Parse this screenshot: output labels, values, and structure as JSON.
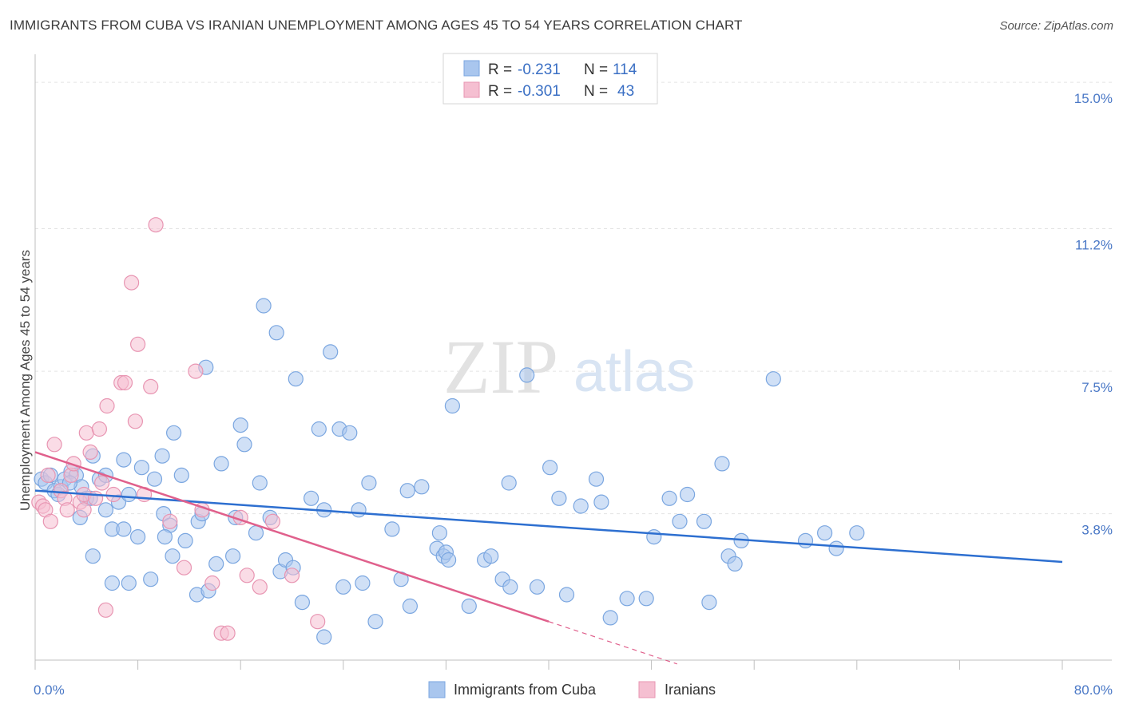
{
  "title": "IMMIGRANTS FROM CUBA VS IRANIAN UNEMPLOYMENT AMONG AGES 45 TO 54 YEARS CORRELATION CHART",
  "source": "Source: ZipAtlas.com",
  "watermark": {
    "zip": "ZIP",
    "atlas": "atlas"
  },
  "chart_data": {
    "type": "scatter",
    "xlim": [
      0,
      80
    ],
    "ylim": [
      0,
      15.5
    ],
    "xlabel": "",
    "ylabel": "Unemployment Among Ages 45 to 54 years",
    "x_tick_labels": {
      "left": "0.0%",
      "right": "80.0%"
    },
    "y_ticks": [
      {
        "value": 3.8,
        "label": "3.8%"
      },
      {
        "value": 7.5,
        "label": "7.5%"
      },
      {
        "value": 11.2,
        "label": "11.2%"
      },
      {
        "value": 15.0,
        "label": "15.0%"
      }
    ],
    "grid": true,
    "legend_position": "top-center",
    "legend": [
      {
        "r_label": "R =",
        "r_value": "-0.231",
        "n_label": "N =",
        "n_value": "114"
      },
      {
        "r_label": "R =",
        "r_value": "-0.301",
        "n_label": "N =",
        "n_value": "43"
      }
    ],
    "series": [
      {
        "name": "Immigrants from Cuba",
        "color": "#7aa6e0",
        "fill": "#a9c6ee",
        "trend": {
          "x": [
            0,
            80
          ],
          "y": [
            4.4,
            2.55
          ],
          "color": "#2d6fd0"
        },
        "points": [
          [
            0.5,
            4.7
          ],
          [
            0.8,
            4.6
          ],
          [
            1.2,
            4.8
          ],
          [
            1.5,
            4.4
          ],
          [
            1.8,
            4.3
          ],
          [
            2.0,
            4.5
          ],
          [
            2.3,
            4.7
          ],
          [
            2.8,
            4.9
          ],
          [
            3.2,
            4.8
          ],
          [
            3.6,
            4.5
          ],
          [
            2.7,
            4.6
          ],
          [
            4.0,
            4.2
          ],
          [
            4.5,
            5.3
          ],
          [
            5.0,
            4.7
          ],
          [
            5.5,
            4.8
          ],
          [
            3.5,
            3.7
          ],
          [
            4.3,
            4.2
          ],
          [
            6.5,
            4.1
          ],
          [
            6.9,
            5.2
          ],
          [
            7.3,
            4.3
          ],
          [
            5.5,
            3.9
          ],
          [
            6.0,
            3.4
          ],
          [
            6.9,
            3.4
          ],
          [
            8.0,
            3.2
          ],
          [
            8.3,
            5.0
          ],
          [
            9.3,
            4.7
          ],
          [
            10.0,
            3.8
          ],
          [
            10.5,
            3.5
          ],
          [
            10.1,
            3.2
          ],
          [
            9.9,
            5.3
          ],
          [
            10.8,
            5.9
          ],
          [
            11.4,
            4.8
          ],
          [
            11.7,
            3.1
          ],
          [
            12.7,
            3.6
          ],
          [
            13.0,
            3.8
          ],
          [
            13.3,
            7.6
          ],
          [
            14.1,
            2.5
          ],
          [
            14.5,
            5.1
          ],
          [
            15.6,
            3.7
          ],
          [
            15.4,
            2.7
          ],
          [
            16.0,
            6.1
          ],
          [
            16.3,
            5.6
          ],
          [
            17.2,
            3.3
          ],
          [
            17.5,
            4.6
          ],
          [
            17.8,
            9.2
          ],
          [
            18.8,
            8.5
          ],
          [
            18.3,
            3.7
          ],
          [
            19.1,
            2.3
          ],
          [
            19.5,
            2.6
          ],
          [
            20.1,
            2.4
          ],
          [
            20.3,
            7.3
          ],
          [
            20.8,
            1.5
          ],
          [
            21.5,
            4.2
          ],
          [
            22.1,
            6.0
          ],
          [
            22.5,
            3.9
          ],
          [
            23.0,
            8.0
          ],
          [
            23.7,
            6.0
          ],
          [
            24.5,
            5.9
          ],
          [
            25.2,
            3.9
          ],
          [
            26.0,
            4.6
          ],
          [
            25.5,
            2.0
          ],
          [
            24.0,
            1.9
          ],
          [
            26.5,
            1.0
          ],
          [
            27.8,
            3.4
          ],
          [
            28.5,
            2.1
          ],
          [
            29.2,
            1.4
          ],
          [
            29.0,
            4.4
          ],
          [
            30.1,
            4.5
          ],
          [
            31.3,
            2.9
          ],
          [
            31.8,
            2.7
          ],
          [
            32.0,
            2.8
          ],
          [
            32.2,
            2.6
          ],
          [
            31.5,
            3.3
          ],
          [
            32.5,
            6.6
          ],
          [
            33.8,
            1.4
          ],
          [
            35.0,
            2.6
          ],
          [
            35.5,
            2.7
          ],
          [
            36.4,
            2.1
          ],
          [
            37.0,
            1.9
          ],
          [
            36.9,
            4.6
          ],
          [
            38.3,
            7.4
          ],
          [
            39.1,
            1.9
          ],
          [
            40.1,
            5.0
          ],
          [
            40.8,
            4.2
          ],
          [
            41.4,
            1.7
          ],
          [
            42.5,
            4.0
          ],
          [
            43.7,
            4.7
          ],
          [
            44.1,
            4.1
          ],
          [
            44.8,
            1.1
          ],
          [
            46.1,
            1.6
          ],
          [
            47.6,
            1.6
          ],
          [
            48.2,
            3.2
          ],
          [
            49.4,
            4.2
          ],
          [
            50.2,
            3.6
          ],
          [
            50.8,
            4.3
          ],
          [
            52.1,
            3.6
          ],
          [
            52.5,
            1.5
          ],
          [
            53.5,
            5.1
          ],
          [
            54.0,
            2.7
          ],
          [
            54.5,
            2.5
          ],
          [
            55.0,
            3.1
          ],
          [
            57.5,
            7.3
          ],
          [
            60.0,
            3.1
          ],
          [
            61.5,
            3.3
          ],
          [
            62.4,
            2.9
          ],
          [
            64.0,
            3.3
          ],
          [
            12.6,
            1.7
          ],
          [
            13.5,
            1.8
          ],
          [
            10.7,
            2.7
          ],
          [
            6.0,
            2.0
          ],
          [
            7.3,
            2.0
          ],
          [
            9.0,
            2.1
          ],
          [
            4.5,
            2.7
          ],
          [
            22.5,
            0.6
          ]
        ]
      },
      {
        "name": "Iranians",
        "color": "#e895b2",
        "fill": "#f5bfd1",
        "trend": {
          "x": [
            0,
            40
          ],
          "y": [
            5.4,
            1.0
          ],
          "color": "#e0608c",
          "dash_to": [
            50,
            -0.1
          ]
        },
        "points": [
          [
            0.3,
            4.1
          ],
          [
            0.6,
            4.0
          ],
          [
            0.8,
            3.9
          ],
          [
            1.0,
            4.8
          ],
          [
            1.2,
            3.6
          ],
          [
            1.5,
            5.6
          ],
          [
            2.0,
            4.4
          ],
          [
            2.3,
            4.2
          ],
          [
            2.8,
            4.8
          ],
          [
            3.0,
            5.1
          ],
          [
            3.5,
            4.1
          ],
          [
            3.8,
            4.3
          ],
          [
            4.0,
            5.9
          ],
          [
            4.3,
            5.4
          ],
          [
            4.7,
            4.2
          ],
          [
            5.0,
            6.0
          ],
          [
            5.2,
            4.6
          ],
          [
            5.6,
            6.6
          ],
          [
            6.1,
            4.3
          ],
          [
            6.7,
            7.2
          ],
          [
            7.0,
            7.2
          ],
          [
            7.5,
            9.8
          ],
          [
            7.8,
            6.2
          ],
          [
            8.0,
            8.2
          ],
          [
            8.5,
            4.3
          ],
          [
            9.0,
            7.1
          ],
          [
            9.4,
            11.3
          ],
          [
            10.5,
            3.6
          ],
          [
            11.6,
            2.4
          ],
          [
            12.5,
            7.5
          ],
          [
            13.0,
            3.9
          ],
          [
            13.8,
            2.0
          ],
          [
            14.5,
            0.7
          ],
          [
            15.0,
            0.7
          ],
          [
            16.0,
            3.7
          ],
          [
            16.5,
            2.2
          ],
          [
            17.5,
            1.9
          ],
          [
            18.5,
            3.6
          ],
          [
            20.0,
            2.2
          ],
          [
            22.0,
            1.0
          ],
          [
            5.5,
            1.3
          ],
          [
            3.8,
            3.9
          ],
          [
            2.5,
            3.9
          ]
        ]
      }
    ]
  }
}
